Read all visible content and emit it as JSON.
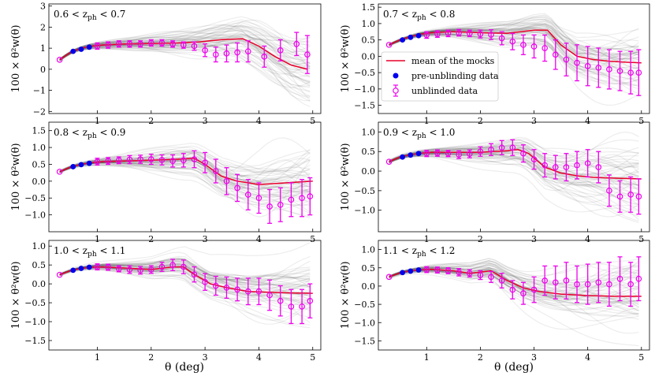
{
  "chart_data": {
    "type": "line",
    "figure_xlabel": "θ (deg)",
    "legend": {
      "location": "panel 2, lower-left",
      "entries": [
        {
          "label": "mean of the mocks",
          "marker": "line",
          "color": "#e8002a"
        },
        {
          "label": "pre-unblinding data",
          "marker": "filled-circle",
          "color": "#0000ee"
        },
        {
          "label": "unblinded data",
          "marker": "open-circle-errorbar",
          "color": "#ee00ee"
        }
      ]
    },
    "colors": {
      "mean": "#e8002a",
      "pre": "#0000ee",
      "unblinded": "#ee00ee",
      "mocks": "#3a3a3a"
    },
    "panels": [
      {
        "label": "0.6 < z_ph < 0.7",
        "label_parts": [
          "0.6 < z",
          "ph",
          " < 0.7"
        ],
        "xlim": [
          0.1,
          5.15
        ],
        "ylim": [
          -2.1,
          3.1
        ],
        "xticks": [
          1,
          2,
          3,
          4,
          5
        ],
        "yticks": [
          -2,
          -1,
          0,
          1,
          2,
          3
        ],
        "ylabel": "100 × θ²w(θ)",
        "mean_line": {
          "x": [
            0.3,
            0.5,
            0.7,
            0.9,
            1.1,
            1.5,
            2.0,
            2.5,
            2.9,
            3.3,
            3.7,
            4.0,
            4.3,
            4.6,
            4.9
          ],
          "y": [
            0.45,
            0.8,
            1.0,
            1.1,
            1.15,
            1.2,
            1.22,
            1.25,
            1.3,
            1.4,
            1.45,
            1.1,
            0.6,
            0.2,
            0.0
          ]
        },
        "pre_unblinding": {
          "x": [
            0.3,
            0.55,
            0.7,
            0.85
          ],
          "y": [
            0.45,
            0.85,
            0.95,
            1.05
          ]
        },
        "unblinded": {
          "x": [
            1.0,
            1.2,
            1.4,
            1.6,
            1.8,
            2.0,
            2.2,
            2.4,
            2.6,
            2.8,
            3.0,
            3.2,
            3.4,
            3.6,
            3.8,
            4.1,
            4.4,
            4.7,
            4.9
          ],
          "y": [
            1.1,
            1.15,
            1.2,
            1.2,
            1.2,
            1.25,
            1.25,
            1.2,
            1.15,
            1.1,
            0.9,
            0.7,
            0.75,
            0.8,
            0.85,
            0.6,
            0.9,
            1.2,
            0.7
          ],
          "err": [
            0.15,
            0.15,
            0.15,
            0.15,
            0.15,
            0.15,
            0.15,
            0.15,
            0.15,
            0.2,
            0.3,
            0.35,
            0.4,
            0.45,
            0.5,
            0.5,
            0.5,
            0.55,
            0.9
          ]
        }
      },
      {
        "label": "0.7 < z_ph < 0.8",
        "label_parts": [
          "0.7 < z",
          "ph",
          " < 0.8"
        ],
        "xlim": [
          0.1,
          5.15
        ],
        "ylim": [
          -1.75,
          1.6
        ],
        "xticks": [
          1,
          2,
          3,
          4,
          5
        ],
        "yticks": [
          -1.5,
          -1.0,
          -0.5,
          0.0,
          0.5,
          1.0,
          1.5
        ],
        "ylabel": "100 × θ²w(θ)",
        "mean_line": {
          "x": [
            0.3,
            0.5,
            0.7,
            0.9,
            1.1,
            1.5,
            2.0,
            2.5,
            3.0,
            3.25,
            3.5,
            3.8,
            4.1,
            4.4,
            4.7,
            5.0
          ],
          "y": [
            0.35,
            0.5,
            0.6,
            0.68,
            0.72,
            0.75,
            0.72,
            0.7,
            0.8,
            0.8,
            0.35,
            0.0,
            -0.1,
            -0.15,
            -0.18,
            -0.2
          ]
        },
        "pre_unblinding": {
          "x": [
            0.3,
            0.55,
            0.7,
            0.85
          ],
          "y": [
            0.35,
            0.5,
            0.58,
            0.63
          ]
        },
        "unblinded": {
          "x": [
            1.0,
            1.2,
            1.4,
            1.6,
            1.8,
            2.0,
            2.2,
            2.4,
            2.6,
            2.8,
            3.0,
            3.2,
            3.4,
            3.6,
            3.8,
            4.0,
            4.2,
            4.4,
            4.6,
            4.8,
            4.95
          ],
          "y": [
            0.65,
            0.68,
            0.7,
            0.72,
            0.7,
            0.68,
            0.66,
            0.55,
            0.45,
            0.35,
            0.3,
            0.25,
            0.05,
            -0.1,
            -0.2,
            -0.3,
            -0.35,
            -0.4,
            -0.45,
            -0.5,
            -0.5
          ],
          "err": [
            0.1,
            0.1,
            0.1,
            0.1,
            0.1,
            0.12,
            0.15,
            0.2,
            0.25,
            0.3,
            0.35,
            0.4,
            0.45,
            0.5,
            0.55,
            0.6,
            0.6,
            0.6,
            0.6,
            0.65,
            0.7
          ]
        }
      },
      {
        "label": "0.8 < z_ph < 0.9",
        "label_parts": [
          "0.8 < z",
          "ph",
          " < 0.9"
        ],
        "xlim": [
          0.1,
          5.15
        ],
        "ylim": [
          -1.5,
          1.75
        ],
        "xticks": [
          1,
          2,
          3,
          4,
          5
        ],
        "yticks": [
          -1.0,
          -0.5,
          0.0,
          0.5,
          1.0,
          1.5
        ],
        "ylabel": "100 × θ²w(θ)",
        "mean_line": {
          "x": [
            0.3,
            0.5,
            0.7,
            0.9,
            1.1,
            1.5,
            2.0,
            2.5,
            2.8,
            3.0,
            3.3,
            3.6,
            4.0,
            4.5,
            5.0
          ],
          "y": [
            0.28,
            0.42,
            0.5,
            0.55,
            0.58,
            0.6,
            0.62,
            0.65,
            0.68,
            0.5,
            0.15,
            0.0,
            -0.1,
            -0.05,
            0.0
          ]
        },
        "pre_unblinding": {
          "x": [
            0.3,
            0.55,
            0.7,
            0.85
          ],
          "y": [
            0.28,
            0.43,
            0.49,
            0.53
          ]
        },
        "unblinded": {
          "x": [
            1.0,
            1.2,
            1.4,
            1.6,
            1.8,
            2.0,
            2.2,
            2.4,
            2.6,
            2.8,
            3.0,
            3.2,
            3.4,
            3.6,
            3.8,
            4.0,
            4.2,
            4.4,
            4.6,
            4.8,
            4.95
          ],
          "y": [
            0.58,
            0.6,
            0.62,
            0.64,
            0.65,
            0.65,
            0.63,
            0.6,
            0.62,
            0.65,
            0.55,
            0.3,
            0.0,
            -0.2,
            -0.4,
            -0.5,
            -0.75,
            -0.7,
            -0.55,
            -0.5,
            -0.45
          ],
          "err": [
            0.1,
            0.1,
            0.1,
            0.12,
            0.12,
            0.15,
            0.15,
            0.18,
            0.2,
            0.25,
            0.3,
            0.35,
            0.4,
            0.4,
            0.45,
            0.45,
            0.5,
            0.5,
            0.5,
            0.55,
            0.55
          ]
        }
      },
      {
        "label": "0.9 < z_ph < 1.0",
        "label_parts": [
          "0.9 < z",
          "ph",
          " < 1.0"
        ],
        "xlim": [
          0.1,
          5.15
        ],
        "ylim": [
          -1.55,
          1.25
        ],
        "xticks": [
          1,
          2,
          3,
          4,
          5
        ],
        "yticks": [
          -1.0,
          -0.5,
          0.0,
          0.5,
          1.0
        ],
        "ylabel": "100 × θ²w(θ)",
        "mean_line": {
          "x": [
            0.3,
            0.5,
            0.7,
            0.9,
            1.1,
            1.5,
            2.0,
            2.5,
            2.7,
            2.9,
            3.2,
            3.5,
            3.8,
            4.1,
            4.5,
            5.0
          ],
          "y": [
            0.24,
            0.36,
            0.42,
            0.46,
            0.48,
            0.48,
            0.48,
            0.52,
            0.55,
            0.45,
            0.1,
            -0.05,
            -0.12,
            -0.16,
            -0.18,
            -0.2
          ]
        },
        "pre_unblinding": {
          "x": [
            0.3,
            0.55,
            0.7,
            0.85
          ],
          "y": [
            0.24,
            0.36,
            0.41,
            0.45
          ]
        },
        "unblinded": {
          "x": [
            1.0,
            1.2,
            1.4,
            1.6,
            1.8,
            2.0,
            2.2,
            2.4,
            2.6,
            2.8,
            3.0,
            3.2,
            3.4,
            3.6,
            3.8,
            4.0,
            4.2,
            4.4,
            4.6,
            4.8,
            4.95
          ],
          "y": [
            0.45,
            0.46,
            0.45,
            0.42,
            0.44,
            0.5,
            0.55,
            0.6,
            0.6,
            0.45,
            0.3,
            0.15,
            0.1,
            0.1,
            0.15,
            0.2,
            0.1,
            -0.5,
            -0.65,
            -0.6,
            -0.65
          ],
          "err": [
            0.08,
            0.08,
            0.08,
            0.1,
            0.1,
            0.12,
            0.15,
            0.18,
            0.2,
            0.22,
            0.25,
            0.3,
            0.3,
            0.35,
            0.35,
            0.35,
            0.4,
            0.4,
            0.4,
            0.45,
            0.45
          ]
        }
      },
      {
        "label": "1.0 < z_ph < 1.1",
        "label_parts": [
          "1.0 < z",
          "ph",
          " < 1.1"
        ],
        "xlim": [
          0.1,
          5.15
        ],
        "ylim": [
          -1.75,
          1.15
        ],
        "xticks": [
          1,
          2,
          3,
          4,
          5
        ],
        "yticks": [
          -1.5,
          -1.0,
          -0.5,
          0.0,
          0.5,
          1.0
        ],
        "ylabel": "100 × θ²w(θ)",
        "mean_line": {
          "x": [
            0.3,
            0.5,
            0.7,
            0.9,
            1.1,
            1.5,
            2.0,
            2.4,
            2.6,
            2.8,
            3.1,
            3.4,
            3.8,
            4.2,
            4.6,
            5.0
          ],
          "y": [
            0.24,
            0.35,
            0.41,
            0.44,
            0.45,
            0.42,
            0.38,
            0.45,
            0.45,
            0.25,
            0.0,
            -0.1,
            -0.2,
            -0.22,
            -0.24,
            -0.25
          ]
        },
        "pre_unblinding": {
          "x": [
            0.3,
            0.55,
            0.7,
            0.85
          ],
          "y": [
            0.24,
            0.36,
            0.41,
            0.44
          ]
        },
        "unblinded": {
          "x": [
            1.0,
            1.2,
            1.4,
            1.6,
            1.8,
            2.0,
            2.2,
            2.4,
            2.6,
            2.8,
            3.0,
            3.2,
            3.4,
            3.6,
            3.8,
            4.0,
            4.2,
            4.4,
            4.6,
            4.8,
            4.95
          ],
          "y": [
            0.45,
            0.44,
            0.4,
            0.38,
            0.36,
            0.38,
            0.45,
            0.5,
            0.45,
            0.25,
            0.05,
            -0.05,
            -0.1,
            -0.15,
            -0.2,
            -0.2,
            -0.3,
            -0.45,
            -0.6,
            -0.6,
            -0.45
          ],
          "err": [
            0.08,
            0.08,
            0.08,
            0.1,
            0.1,
            0.1,
            0.12,
            0.15,
            0.18,
            0.2,
            0.22,
            0.25,
            0.28,
            0.3,
            0.35,
            0.35,
            0.4,
            0.4,
            0.45,
            0.45,
            0.45
          ]
        }
      },
      {
        "label": "1.1 < z_ph < 1.2",
        "label_parts": [
          "1.1 < z",
          "ph",
          " < 1.2"
        ],
        "xlim": [
          0.1,
          5.15
        ],
        "ylim": [
          -1.75,
          1.25
        ],
        "xticks": [
          1,
          2,
          3,
          4,
          5
        ],
        "yticks": [
          -1.5,
          -1.0,
          -0.5,
          0.0,
          0.5,
          1.0
        ],
        "ylabel": "100 × θ²w(θ)",
        "mean_line": {
          "x": [
            0.3,
            0.5,
            0.7,
            0.9,
            1.1,
            1.5,
            1.8,
            2.0,
            2.2,
            2.5,
            2.8,
            3.1,
            3.5,
            4.0,
            4.5,
            5.0
          ],
          "y": [
            0.25,
            0.36,
            0.42,
            0.45,
            0.46,
            0.42,
            0.35,
            0.38,
            0.42,
            0.15,
            -0.05,
            -0.15,
            -0.22,
            -0.26,
            -0.28,
            -0.28
          ]
        },
        "pre_unblinding": {
          "x": [
            0.3,
            0.55,
            0.7,
            0.85
          ],
          "y": [
            0.25,
            0.37,
            0.41,
            0.44
          ]
        },
        "unblinded": {
          "x": [
            1.0,
            1.2,
            1.4,
            1.6,
            1.8,
            2.0,
            2.2,
            2.4,
            2.6,
            2.8,
            3.0,
            3.2,
            3.4,
            3.6,
            3.8,
            4.0,
            4.2,
            4.4,
            4.6,
            4.8,
            4.95
          ],
          "y": [
            0.45,
            0.44,
            0.42,
            0.38,
            0.35,
            0.3,
            0.25,
            0.15,
            -0.1,
            -0.2,
            -0.1,
            0.15,
            0.1,
            0.15,
            0.05,
            0.05,
            0.1,
            0.05,
            0.2,
            0.05,
            0.2
          ],
          "err": [
            0.08,
            0.08,
            0.08,
            0.1,
            0.1,
            0.12,
            0.15,
            0.2,
            0.25,
            0.3,
            0.35,
            0.4,
            0.45,
            0.5,
            0.5,
            0.55,
            0.55,
            0.6,
            0.6,
            0.6,
            0.6
          ]
        }
      }
    ]
  }
}
